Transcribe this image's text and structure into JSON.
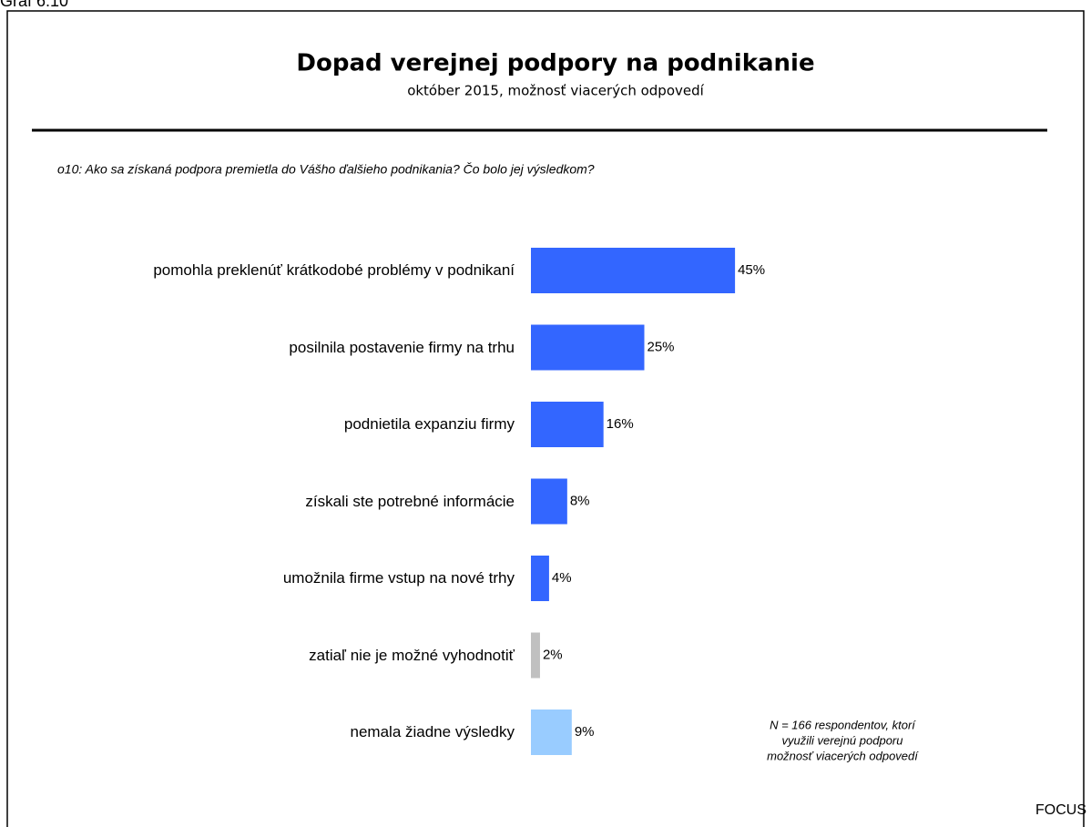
{
  "chart_data": {
    "type": "barh",
    "caption": "Graf 6.10",
    "title": "Dopad verejnej podpory na podnikanie",
    "subtitle": "október 2015, možnosť viacerých odpovedí",
    "question": "o10: Ako sa získaná podpora premietla do Vášho ďalšieho podnikania? Čo bolo jej výsledkom?",
    "categories": [
      "pomohla preklenúť krátkodobé problémy v podnikaní",
      "posilnila postavenie firmy na trhu",
      "podnietila expanziu firmy",
      "získali ste potrebné informácie",
      "umožnila firme vstup na nové trhy",
      "zatiaľ nie je možné vyhodnotiť",
      "nemala žiadne výsledky"
    ],
    "values": [
      45,
      25,
      16,
      8,
      4,
      2,
      9
    ],
    "value_labels": [
      "45%",
      "25%",
      "16%",
      "8%",
      "4%",
      "2%",
      "9%"
    ],
    "colors": [
      "#3366ff",
      "#3366ff",
      "#3366ff",
      "#3366ff",
      "#3366ff",
      "#c0c0c0",
      "#99ccff"
    ],
    "note": [
      "N = 166 respondentov, ktorí",
      "využili verejnú podporu",
      "možnosť viacerých odpovedí"
    ],
    "source": "FOCUS"
  }
}
